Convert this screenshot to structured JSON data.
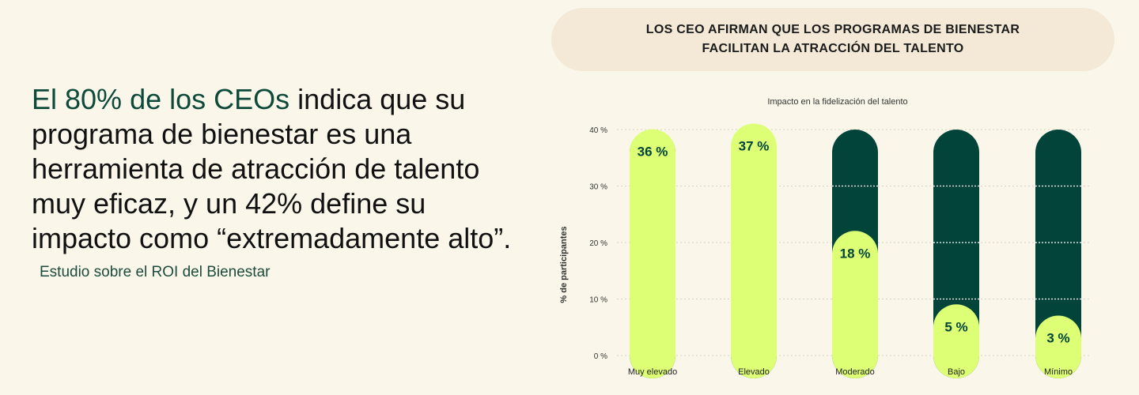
{
  "headline": {
    "highlight": "El 80% de los CEOs",
    "rest": " indica que su programa de bienestar es una herramienta de atracción de talento muy eficaz, y un 42% define su impacto como “extremadamente alto”."
  },
  "source": "Estudio sobre el ROI del Bienestar",
  "banner_title": "LOS CEO AFIRMAN QUE LOS PROGRAMAS DE BIENESTAR FACILITAN LA ATRACCIÓN DEL TALENTO",
  "colors": {
    "dark_green": "#03443a",
    "lime": "#ddff75",
    "banner_bg": "#f3e9d6",
    "page_bg": "#faf7ea"
  },
  "chart_data": {
    "type": "bar",
    "title": "Impacto en la fidelización del talento",
    "ylabel": "% de participantes",
    "xlabel": "",
    "ylim": [
      0,
      40
    ],
    "yticks": [
      0,
      10,
      20,
      30,
      40
    ],
    "ytick_labels": [
      "0 %",
      "10 %",
      "20 %",
      "30 %",
      "40 %"
    ],
    "categories": [
      "Muy elevado",
      "Elevado",
      "Moderado",
      "Bajo",
      "Mínimo"
    ],
    "values": [
      36,
      37,
      18,
      5,
      3
    ],
    "value_labels": [
      "36 %",
      "37 %",
      "18 %",
      "5 %",
      "3 %"
    ]
  }
}
